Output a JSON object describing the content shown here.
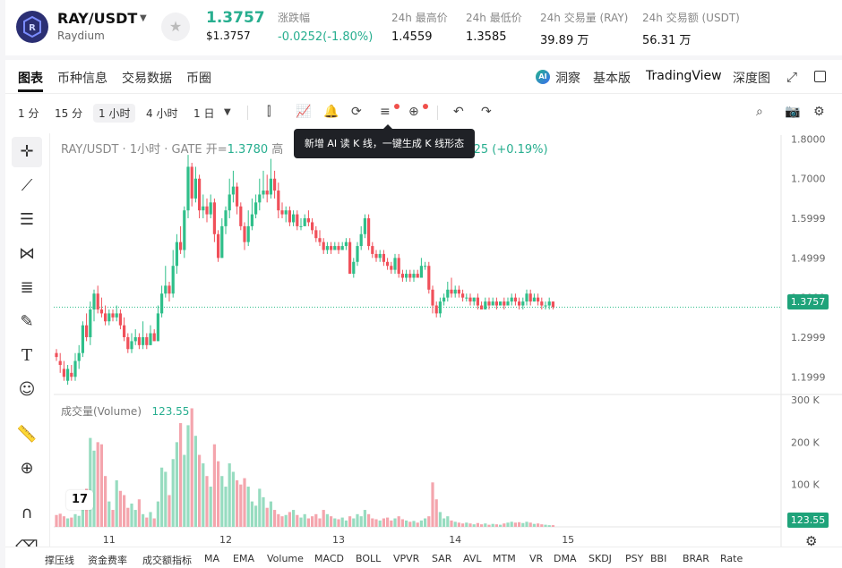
{
  "header": {
    "pair": "RAY/USDT",
    "project": "Raydium",
    "price": "1.3757",
    "price_usd": "$1.3757",
    "stats": [
      {
        "label": "涨跌幅",
        "value": "-0.0252(-1.80%)",
        "tone": "green"
      },
      {
        "label": "24h 最高价",
        "value": "1.4559"
      },
      {
        "label": "24h 最低价",
        "value": "1.3585"
      },
      {
        "label": "24h 交易量 (RAY)",
        "value": "39.89 万"
      },
      {
        "label": "24h 交易额 (USDT)",
        "value": "56.31 万"
      }
    ]
  },
  "tabs": [
    "图表",
    "币种信息",
    "交易数据",
    "币圈"
  ],
  "right_tabs": {
    "ai": "洞察",
    "basic": "基本版",
    "tv": "TradingView",
    "depth": "深度图"
  },
  "timeframes": [
    "1 分",
    "15 分",
    "1 小时",
    "4 小时",
    "1 日"
  ],
  "tooltip": "新增 AI 读 K 线，一键生成 K 线形态",
  "legend": {
    "title": "RAY/USDT · 1小时 · GATE",
    "open_label": "开=",
    "open": "1.3780",
    "high_label": "高",
    "change": "25 (+0.19%)"
  },
  "volume_legend": {
    "label": "成交量(Volume)",
    "value": "123.55"
  },
  "price_tag": "1.3757",
  "volume_tag": "123.55",
  "tv_logo": "17",
  "indicators": [
    "撑压线",
    "资金费率",
    "成交额指标",
    "MA",
    "EMA",
    "Volume",
    "MACD",
    "BOLL",
    "VPVR",
    "SAR",
    "AVL",
    "MTM",
    "VR",
    "DMA",
    "SKDJ",
    "PSY",
    "BBI",
    "BRAR",
    "Rate"
  ],
  "colors": {
    "up": "#2fbf8a",
    "down": "#f0505a",
    "up_vol": "#97dcc0",
    "down_vol": "#f4a5ad",
    "accent": "#1fa37a"
  },
  "chart_data": {
    "type": "candlestick",
    "y_ticks": [
      "1.8000",
      "1.7000",
      "1.5999",
      "1.4999",
      "1.3999",
      "1.2999",
      "1.1999"
    ],
    "ylim": [
      1.16,
      1.81
    ],
    "volume_ticks": [
      "300 K",
      "200 K",
      "100 K"
    ],
    "volume_lim": [
      0,
      300
    ],
    "x_ticks": [
      {
        "label": "11",
        "index": 14
      },
      {
        "label": "12",
        "index": 45
      },
      {
        "label": "13",
        "index": 75
      },
      {
        "label": "14",
        "index": 106
      },
      {
        "label": "15",
        "index": 136
      }
    ],
    "current_price": 1.3757,
    "candles": [
      [
        1.26,
        1.25,
        1.27,
        1.24,
        28
      ],
      [
        1.24,
        1.23,
        1.26,
        1.21,
        31
      ],
      [
        1.22,
        1.2,
        1.24,
        1.19,
        25
      ],
      [
        1.19,
        1.22,
        1.23,
        1.18,
        20
      ],
      [
        1.21,
        1.2,
        1.23,
        1.19,
        22
      ],
      [
        1.2,
        1.24,
        1.26,
        1.19,
        30
      ],
      [
        1.24,
        1.26,
        1.28,
        1.22,
        26
      ],
      [
        1.26,
        1.33,
        1.34,
        1.25,
        45
      ],
      [
        1.33,
        1.3,
        1.36,
        1.29,
        90
      ],
      [
        1.3,
        1.37,
        1.39,
        1.28,
        210
      ],
      [
        1.37,
        1.41,
        1.42,
        1.34,
        180
      ],
      [
        1.41,
        1.37,
        1.43,
        1.36,
        200
      ],
      [
        1.37,
        1.36,
        1.4,
        1.35,
        195
      ],
      [
        1.36,
        1.34,
        1.38,
        1.33,
        120
      ],
      [
        1.34,
        1.36,
        1.37,
        1.33,
        60
      ],
      [
        1.36,
        1.35,
        1.37,
        1.34,
        40
      ],
      [
        1.35,
        1.36,
        1.38,
        1.34,
        110
      ],
      [
        1.36,
        1.33,
        1.37,
        1.32,
        85
      ],
      [
        1.33,
        1.3,
        1.35,
        1.29,
        75
      ],
      [
        1.3,
        1.27,
        1.31,
        1.26,
        45
      ],
      [
        1.27,
        1.29,
        1.31,
        1.26,
        55
      ],
      [
        1.29,
        1.3,
        1.32,
        1.28,
        40
      ],
      [
        1.3,
        1.28,
        1.31,
        1.27,
        65
      ],
      [
        1.28,
        1.3,
        1.34,
        1.27,
        30
      ],
      [
        1.3,
        1.28,
        1.31,
        1.27,
        22
      ],
      [
        1.28,
        1.31,
        1.33,
        1.28,
        35
      ],
      [
        1.31,
        1.29,
        1.32,
        1.29,
        20
      ],
      [
        1.29,
        1.36,
        1.38,
        1.29,
        60
      ],
      [
        1.36,
        1.41,
        1.43,
        1.35,
        140
      ],
      [
        1.41,
        1.43,
        1.48,
        1.4,
        130
      ],
      [
        1.43,
        1.41,
        1.44,
        1.39,
        75
      ],
      [
        1.41,
        1.48,
        1.52,
        1.4,
        160
      ],
      [
        1.48,
        1.54,
        1.56,
        1.46,
        200
      ],
      [
        1.54,
        1.52,
        1.58,
        1.51,
        245
      ],
      [
        1.52,
        1.62,
        1.63,
        1.5,
        170
      ],
      [
        1.62,
        1.73,
        1.76,
        1.6,
        240
      ],
      [
        1.73,
        1.65,
        1.74,
        1.63,
        280
      ],
      [
        1.65,
        1.7,
        1.73,
        1.64,
        215
      ],
      [
        1.7,
        1.62,
        1.71,
        1.6,
        170
      ],
      [
        1.62,
        1.63,
        1.66,
        1.6,
        150
      ],
      [
        1.63,
        1.61,
        1.65,
        1.59,
        120
      ],
      [
        1.61,
        1.64,
        1.66,
        1.6,
        95
      ],
      [
        1.64,
        1.56,
        1.65,
        1.54,
        195
      ],
      [
        1.56,
        1.5,
        1.57,
        1.49,
        155
      ],
      [
        1.5,
        1.58,
        1.6,
        1.5,
        120
      ],
      [
        1.58,
        1.62,
        1.63,
        1.56,
        95
      ],
      [
        1.62,
        1.66,
        1.7,
        1.6,
        150
      ],
      [
        1.66,
        1.68,
        1.72,
        1.64,
        130
      ],
      [
        1.68,
        1.63,
        1.69,
        1.61,
        110
      ],
      [
        1.63,
        1.58,
        1.64,
        1.57,
        100
      ],
      [
        1.58,
        1.54,
        1.59,
        1.52,
        115
      ],
      [
        1.54,
        1.58,
        1.62,
        1.53,
        95
      ],
      [
        1.58,
        1.61,
        1.65,
        1.57,
        60
      ],
      [
        1.61,
        1.64,
        1.66,
        1.6,
        50
      ],
      [
        1.64,
        1.66,
        1.7,
        1.62,
        90
      ],
      [
        1.66,
        1.67,
        1.72,
        1.65,
        70
      ],
      [
        1.67,
        1.66,
        1.71,
        1.64,
        45
      ],
      [
        1.66,
        1.7,
        1.75,
        1.65,
        60
      ],
      [
        1.7,
        1.67,
        1.72,
        1.65,
        40
      ],
      [
        1.67,
        1.62,
        1.69,
        1.6,
        30
      ],
      [
        1.62,
        1.61,
        1.64,
        1.6,
        25
      ],
      [
        1.61,
        1.62,
        1.63,
        1.59,
        28
      ],
      [
        1.62,
        1.59,
        1.63,
        1.58,
        35
      ],
      [
        1.59,
        1.61,
        1.62,
        1.58,
        40
      ],
      [
        1.61,
        1.58,
        1.62,
        1.57,
        28
      ],
      [
        1.58,
        1.58,
        1.6,
        1.57,
        22
      ],
      [
        1.58,
        1.6,
        1.61,
        1.58,
        30
      ],
      [
        1.6,
        1.59,
        1.62,
        1.58,
        20
      ],
      [
        1.59,
        1.57,
        1.6,
        1.56,
        25
      ],
      [
        1.57,
        1.55,
        1.58,
        1.54,
        30
      ],
      [
        1.55,
        1.54,
        1.57,
        1.53,
        20
      ],
      [
        1.54,
        1.52,
        1.55,
        1.51,
        40
      ],
      [
        1.52,
        1.53,
        1.54,
        1.51,
        30
      ],
      [
        1.53,
        1.52,
        1.54,
        1.51,
        25
      ],
      [
        1.52,
        1.53,
        1.54,
        1.52,
        20
      ],
      [
        1.53,
        1.52,
        1.54,
        1.51,
        18
      ],
      [
        1.52,
        1.53,
        1.54,
        1.52,
        22
      ],
      [
        1.53,
        1.54,
        1.55,
        1.52,
        15
      ],
      [
        1.54,
        1.46,
        1.55,
        1.46,
        25
      ],
      [
        1.46,
        1.49,
        1.5,
        1.45,
        20
      ],
      [
        1.49,
        1.53,
        1.54,
        1.48,
        30
      ],
      [
        1.53,
        1.56,
        1.58,
        1.52,
        25
      ],
      [
        1.56,
        1.6,
        1.61,
        1.55,
        40
      ],
      [
        1.6,
        1.53,
        1.61,
        1.52,
        30
      ],
      [
        1.53,
        1.51,
        1.54,
        1.5,
        20
      ],
      [
        1.51,
        1.5,
        1.52,
        1.49,
        18
      ],
      [
        1.5,
        1.51,
        1.52,
        1.49,
        15
      ],
      [
        1.51,
        1.49,
        1.52,
        1.48,
        20
      ],
      [
        1.49,
        1.48,
        1.5,
        1.47,
        22
      ],
      [
        1.48,
        1.47,
        1.49,
        1.46,
        15
      ],
      [
        1.47,
        1.5,
        1.51,
        1.46,
        20
      ],
      [
        1.5,
        1.46,
        1.51,
        1.45,
        25
      ],
      [
        1.46,
        1.45,
        1.47,
        1.44,
        18
      ],
      [
        1.45,
        1.46,
        1.47,
        1.44,
        15
      ],
      [
        1.46,
        1.45,
        1.47,
        1.44,
        12
      ],
      [
        1.45,
        1.46,
        1.47,
        1.44,
        14
      ],
      [
        1.46,
        1.45,
        1.47,
        1.45,
        10
      ],
      [
        1.45,
        1.48,
        1.5,
        1.45,
        15
      ],
      [
        1.48,
        1.48,
        1.49,
        1.47,
        20
      ],
      [
        1.48,
        1.42,
        1.49,
        1.41,
        25
      ],
      [
        1.42,
        1.38,
        1.43,
        1.36,
        105
      ],
      [
        1.38,
        1.36,
        1.39,
        1.35,
        65
      ],
      [
        1.36,
        1.39,
        1.4,
        1.35,
        35
      ],
      [
        1.39,
        1.4,
        1.41,
        1.38,
        20
      ],
      [
        1.4,
        1.42,
        1.44,
        1.39,
        25
      ],
      [
        1.42,
        1.41,
        1.45,
        1.4,
        15
      ],
      [
        1.41,
        1.42,
        1.43,
        1.4,
        12
      ],
      [
        1.42,
        1.41,
        1.43,
        1.4,
        10
      ],
      [
        1.41,
        1.4,
        1.42,
        1.39,
        8
      ],
      [
        1.4,
        1.4,
        1.41,
        1.39,
        10
      ],
      [
        1.4,
        1.39,
        1.41,
        1.38,
        8
      ],
      [
        1.39,
        1.4,
        1.4,
        1.38,
        6
      ],
      [
        1.4,
        1.38,
        1.41,
        1.37,
        9
      ],
      [
        1.38,
        1.37,
        1.39,
        1.37,
        6
      ],
      [
        1.37,
        1.39,
        1.4,
        1.37,
        8
      ],
      [
        1.39,
        1.38,
        1.4,
        1.37,
        5
      ],
      [
        1.38,
        1.39,
        1.4,
        1.38,
        7
      ],
      [
        1.39,
        1.38,
        1.4,
        1.37,
        6
      ],
      [
        1.38,
        1.39,
        1.39,
        1.38,
        5
      ],
      [
        1.39,
        1.38,
        1.4,
        1.37,
        8
      ],
      [
        1.38,
        1.39,
        1.4,
        1.38,
        10
      ],
      [
        1.39,
        1.4,
        1.41,
        1.38,
        12
      ],
      [
        1.4,
        1.39,
        1.41,
        1.38,
        10
      ],
      [
        1.39,
        1.38,
        1.4,
        1.37,
        11
      ],
      [
        1.38,
        1.39,
        1.4,
        1.37,
        9
      ],
      [
        1.39,
        1.41,
        1.42,
        1.38,
        12
      ],
      [
        1.41,
        1.39,
        1.42,
        1.38,
        10
      ],
      [
        1.39,
        1.4,
        1.41,
        1.39,
        7
      ],
      [
        1.4,
        1.39,
        1.41,
        1.38,
        8
      ],
      [
        1.39,
        1.38,
        1.4,
        1.37,
        6
      ],
      [
        1.38,
        1.38,
        1.39,
        1.37,
        5
      ],
      [
        1.38,
        1.39,
        1.4,
        1.37,
        4
      ],
      [
        1.39,
        1.376,
        1.39,
        1.37,
        4
      ]
    ]
  }
}
